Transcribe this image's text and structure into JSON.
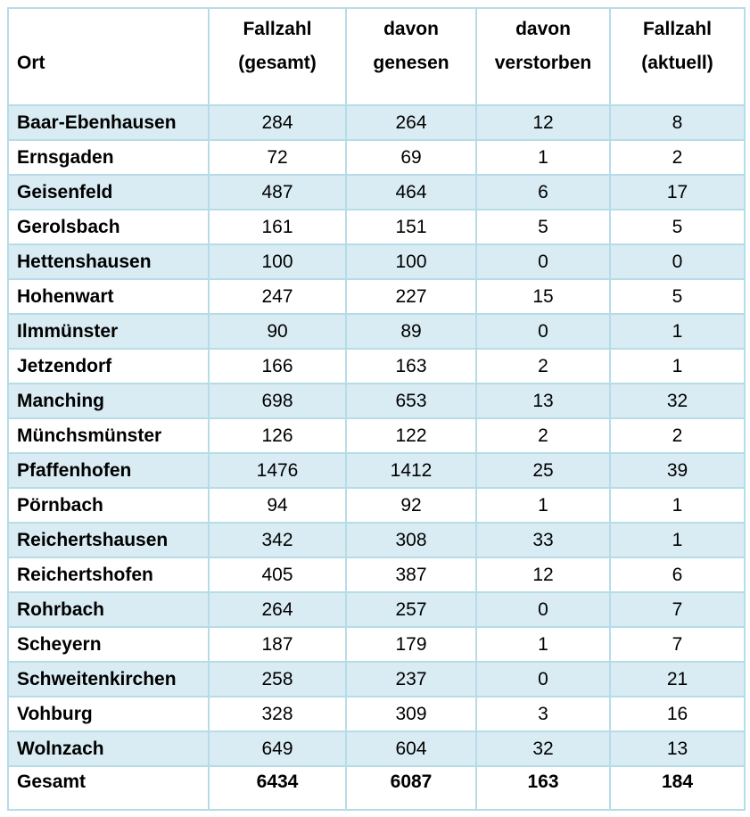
{
  "page": {
    "background_color": "#ffffff",
    "text_color": "#000000"
  },
  "colors": {
    "border": "#b6dce8",
    "row_highlight_fill": "#d9ecf3",
    "row_plain_fill": "#ffffff"
  },
  "table": {
    "columns": [
      {
        "key": "name",
        "line1": "",
        "line2": "Ort"
      },
      {
        "key": "gesamt",
        "line1": "Fallzahl",
        "line2": "(gesamt)"
      },
      {
        "key": "genesen",
        "line1": "davon",
        "line2": "genesen"
      },
      {
        "key": "verstorben",
        "line1": "davon",
        "line2": "verstorben"
      },
      {
        "key": "aktuell",
        "line1": "Fallzahl",
        "line2": "(aktuell)"
      }
    ],
    "rows": [
      {
        "name": "Baar-Ebenhausen",
        "gesamt": "284",
        "genesen": "264",
        "verstorben": "12",
        "aktuell": "8"
      },
      {
        "name": "Ernsgaden",
        "gesamt": "72",
        "genesen": "69",
        "verstorben": "1",
        "aktuell": "2"
      },
      {
        "name": "Geisenfeld",
        "gesamt": "487",
        "genesen": "464",
        "verstorben": "6",
        "aktuell": "17"
      },
      {
        "name": "Gerolsbach",
        "gesamt": "161",
        "genesen": "151",
        "verstorben": "5",
        "aktuell": "5"
      },
      {
        "name": "Hettenshausen",
        "gesamt": "100",
        "genesen": "100",
        "verstorben": "0",
        "aktuell": "0"
      },
      {
        "name": "Hohenwart",
        "gesamt": "247",
        "genesen": "227",
        "verstorben": "15",
        "aktuell": "5"
      },
      {
        "name": "Ilmmünster",
        "gesamt": "90",
        "genesen": "89",
        "verstorben": "0",
        "aktuell": "1"
      },
      {
        "name": "Jetzendorf",
        "gesamt": "166",
        "genesen": "163",
        "verstorben": "2",
        "aktuell": "1"
      },
      {
        "name": "Manching",
        "gesamt": "698",
        "genesen": "653",
        "verstorben": "13",
        "aktuell": "32"
      },
      {
        "name": "Münchsmünster",
        "gesamt": "126",
        "genesen": "122",
        "verstorben": "2",
        "aktuell": "2"
      },
      {
        "name": "Pfaffenhofen",
        "gesamt": "1476",
        "genesen": "1412",
        "verstorben": "25",
        "aktuell": "39"
      },
      {
        "name": "Pörnbach",
        "gesamt": "94",
        "genesen": "92",
        "verstorben": "1",
        "aktuell": "1"
      },
      {
        "name": "Reichertshausen",
        "gesamt": "342",
        "genesen": "308",
        "verstorben": "33",
        "aktuell": "1"
      },
      {
        "name": "Reichertshofen",
        "gesamt": "405",
        "genesen": "387",
        "verstorben": "12",
        "aktuell": "6"
      },
      {
        "name": "Rohrbach",
        "gesamt": "264",
        "genesen": "257",
        "verstorben": "0",
        "aktuell": "7"
      },
      {
        "name": "Scheyern",
        "gesamt": "187",
        "genesen": "179",
        "verstorben": "1",
        "aktuell": "7"
      },
      {
        "name": "Schweitenkirchen",
        "gesamt": "258",
        "genesen": "237",
        "verstorben": "0",
        "aktuell": "21"
      },
      {
        "name": "Vohburg",
        "gesamt": "328",
        "genesen": "309",
        "verstorben": "3",
        "aktuell": "16"
      },
      {
        "name": "Wolnzach",
        "gesamt": "649",
        "genesen": "604",
        "verstorben": "32",
        "aktuell": "13"
      },
      {
        "name": "Gesamt",
        "gesamt": "6434",
        "genesen": "6087",
        "verstorben": "163",
        "aktuell": "184",
        "is_total": true
      }
    ]
  }
}
